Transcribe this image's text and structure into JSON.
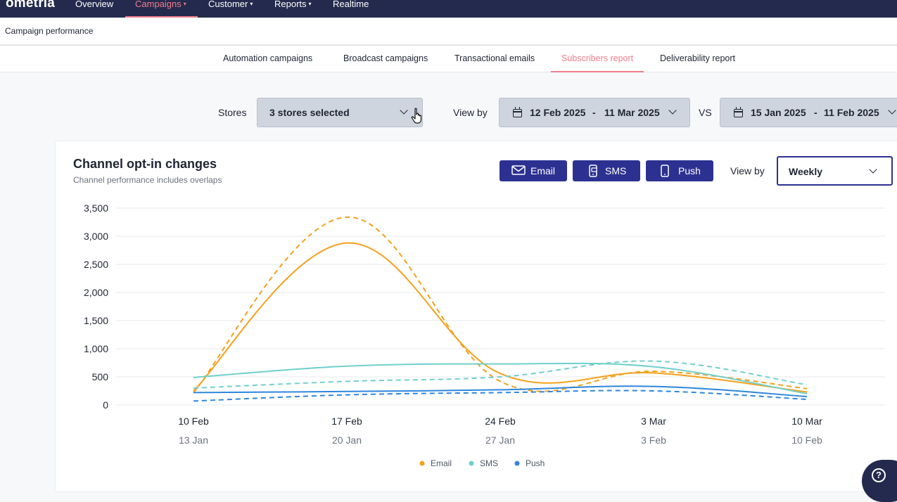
{
  "topnav": {
    "logo": "ometria",
    "items": [
      {
        "label": "Overview",
        "caret": ""
      },
      {
        "label": "Campaigns",
        "caret": "▾"
      },
      {
        "label": "Customer",
        "caret": "▾"
      },
      {
        "label": "Reports",
        "caret": "▾"
      },
      {
        "label": "Realtime",
        "caret": ""
      }
    ],
    "active": "Campaigns"
  },
  "subheader": {
    "title": "Campaign performance"
  },
  "tabs": [
    {
      "label": "Automation campaigns"
    },
    {
      "label": "Broadcast campaigns"
    },
    {
      "label": "Transactional emails"
    },
    {
      "label": "Subscribers report"
    },
    {
      "label": "Deliverability report"
    }
  ],
  "active_tab": "Subscribers report",
  "filters": {
    "stores_label": "Stores",
    "stores_value": "3 stores selected",
    "view_by_label": "View by",
    "range_start": "12 Feb 2025",
    "range_sep": "-",
    "range_end": "11 Mar 2025",
    "vs_label": "VS",
    "compare_start": "15 Jan 2025",
    "compare_end": "11 Feb 2025"
  },
  "card": {
    "title": "Channel opt-in changes",
    "subtitle": "Channel performance includes overlaps",
    "buttons": {
      "email": "Email",
      "sms": "SMS",
      "push": "Push"
    },
    "view_by_label": "View by",
    "view_by_value": "Weekly"
  },
  "colors": {
    "email": "#f5a01a",
    "sms": "#6fd0cc",
    "push": "#2e86de",
    "accent": "#2c3191",
    "nav_bg": "#232a4d",
    "active": "#f17d8b"
  },
  "icons": {
    "email_button": "envelope-icon",
    "sms_button": "sms-phone-icon",
    "push_button": "mobile-phone-icon",
    "date": "calendar-icon",
    "help": "help-icon",
    "cursor": "hand-pointer-icon"
  },
  "chart_data": {
    "type": "line",
    "title": "Channel opt-in changes",
    "categories": [
      "10 Feb",
      "17 Feb",
      "24 Feb",
      "3 Mar",
      "10 Mar"
    ],
    "compare_categories": [
      "13 Jan",
      "20 Jan",
      "27 Jan",
      "3 Feb",
      "10 Feb"
    ],
    "ylim": [
      0,
      3500
    ],
    "yticks": [
      "3,500",
      "3,000",
      "2,500",
      "2,000",
      "1,500",
      "1,000",
      "500",
      "0"
    ],
    "ytick_values": [
      3500,
      3000,
      2500,
      2000,
      1500,
      1000,
      500,
      0
    ],
    "grid": true,
    "legend_position": "bottom",
    "series": [
      {
        "name": "Email",
        "period": "current",
        "style": "solid",
        "values": [
          250,
          2880,
          560,
          570,
          230
        ]
      },
      {
        "name": "Email",
        "period": "comparison",
        "style": "dashed",
        "values": [
          220,
          3340,
          420,
          600,
          290
        ]
      },
      {
        "name": "SMS",
        "period": "current",
        "style": "solid",
        "values": [
          490,
          690,
          730,
          680,
          200
        ]
      },
      {
        "name": "SMS",
        "period": "comparison",
        "style": "dashed",
        "values": [
          300,
          420,
          500,
          780,
          360
        ]
      },
      {
        "name": "Push",
        "period": "current",
        "style": "solid",
        "values": [
          220,
          240,
          270,
          330,
          150
        ]
      },
      {
        "name": "Push",
        "period": "comparison",
        "style": "dashed",
        "values": [
          70,
          180,
          220,
          250,
          100
        ]
      }
    ],
    "legend": [
      "Email",
      "SMS",
      "Push"
    ]
  }
}
